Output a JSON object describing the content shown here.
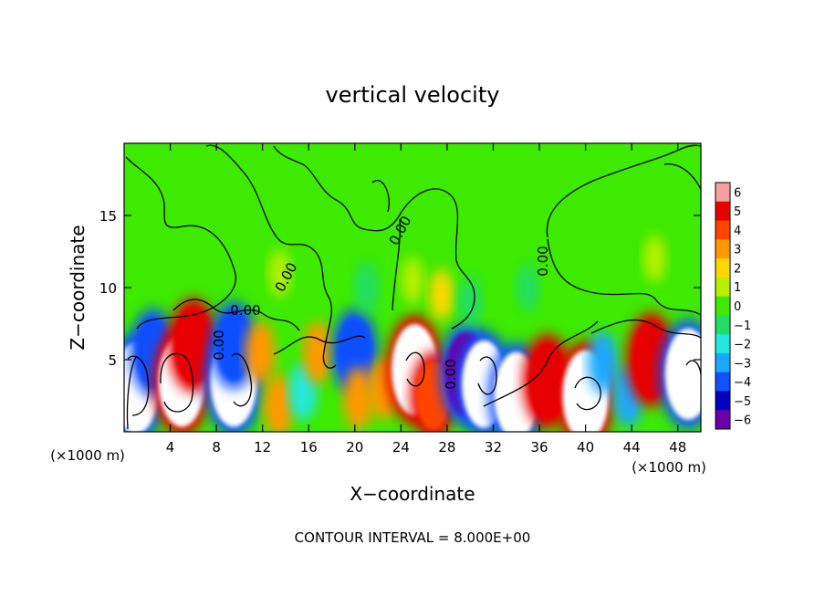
{
  "chart_data": {
    "type": "heatmap",
    "title": "vertical velocity",
    "xlabel": "X−coordinate",
    "ylabel": "Z−coordinate",
    "x_unit_left": "(×1000 m)",
    "x_unit_right": "(×1000 m)",
    "footer": "CONTOUR INTERVAL = 8.000E+00",
    "xlim": [
      0,
      50
    ],
    "ylim": [
      0,
      20
    ],
    "x_ticks": [
      4,
      8,
      12,
      16,
      20,
      24,
      28,
      32,
      36,
      40,
      44,
      48
    ],
    "x_tick_labels": [
      "4",
      "8",
      "12",
      "16",
      "20",
      "24",
      "28",
      "32",
      "36",
      "40",
      "44",
      "48"
    ],
    "y_ticks": [
      5,
      10,
      15
    ],
    "y_tick_labels": [
      "5",
      "10",
      "15"
    ],
    "contour_labels": [
      "0.00",
      "0.00",
      "0.00",
      "0.00",
      "0.00",
      "0.00"
    ],
    "colorbar": {
      "ticks": [
        6,
        5,
        4,
        3,
        2,
        1,
        0,
        -1,
        -2,
        -3,
        -4,
        -5,
        -6
      ],
      "tick_labels": [
        "6",
        "5",
        "4",
        "3",
        "2",
        "1",
        "0",
        "−1",
        "−2",
        "−3",
        "−4",
        "−5",
        "−6"
      ],
      "colors": [
        "#f4a0a0",
        "#e60000",
        "#ff4400",
        "#ff9900",
        "#ffd800",
        "#b8f000",
        "#3dea00",
        "#22dd66",
        "#22e8e0",
        "#1aa8ff",
        "#1050ff",
        "#0000c0",
        "#6a00a8"
      ]
    },
    "background_value": 0,
    "cells": [
      {
        "x": 1.0,
        "z": 3.0,
        "w": -7.0
      },
      {
        "x": 2.5,
        "z": 5.5,
        "w": -4.0
      },
      {
        "x": 5.0,
        "z": 3.5,
        "w": 7.0
      },
      {
        "x": 6.0,
        "z": 6.0,
        "w": 5.0
      },
      {
        "x": 9.5,
        "z": 3.5,
        "w": -7.0
      },
      {
        "x": 9.5,
        "z": 6.0,
        "w": -4.0
      },
      {
        "x": 11.8,
        "z": 5.5,
        "w": 3.0
      },
      {
        "x": 13.4,
        "z": 1.8,
        "w": 3.0
      },
      {
        "x": 15.5,
        "z": 2.8,
        "w": -2.5
      },
      {
        "x": 16.8,
        "z": 5.5,
        "w": 3.0
      },
      {
        "x": 20.0,
        "z": 5.5,
        "w": -4.0
      },
      {
        "x": 20.3,
        "z": 2.3,
        "w": 3.0
      },
      {
        "x": 22.5,
        "z": 3.0,
        "w": 3.0
      },
      {
        "x": 25.2,
        "z": 4.3,
        "w": 7.0
      },
      {
        "x": 26.8,
        "z": 2.5,
        "w": 4.0
      },
      {
        "x": 29.7,
        "z": 4.0,
        "w": -6.0
      },
      {
        "x": 31.2,
        "z": 3.3,
        "w": -6.5
      },
      {
        "x": 34.0,
        "z": 2.5,
        "w": -6.5
      },
      {
        "x": 36.7,
        "z": 3.5,
        "w": 5.0
      },
      {
        "x": 40.0,
        "z": 2.5,
        "w": 7.0
      },
      {
        "x": 41.5,
        "z": 4.8,
        "w": -3.0
      },
      {
        "x": 43.7,
        "z": 2.5,
        "w": -3.0
      },
      {
        "x": 45.7,
        "z": 5.0,
        "w": 5.0
      },
      {
        "x": 48.9,
        "z": 4.0,
        "w": -7.0
      },
      {
        "x": 25.0,
        "z": 10.5,
        "w": 1.0
      },
      {
        "x": 27.5,
        "z": 9.5,
        "w": 1.5
      },
      {
        "x": 30.0,
        "z": 9.0,
        "w": -1.5
      },
      {
        "x": 21.0,
        "z": 10.0,
        "w": -1.5
      },
      {
        "x": 35.0,
        "z": 10.0,
        "w": -1.0
      },
      {
        "x": 13.5,
        "z": 11.0,
        "w": 1.0
      },
      {
        "x": 46.0,
        "z": 12.0,
        "w": 1.0
      }
    ]
  }
}
